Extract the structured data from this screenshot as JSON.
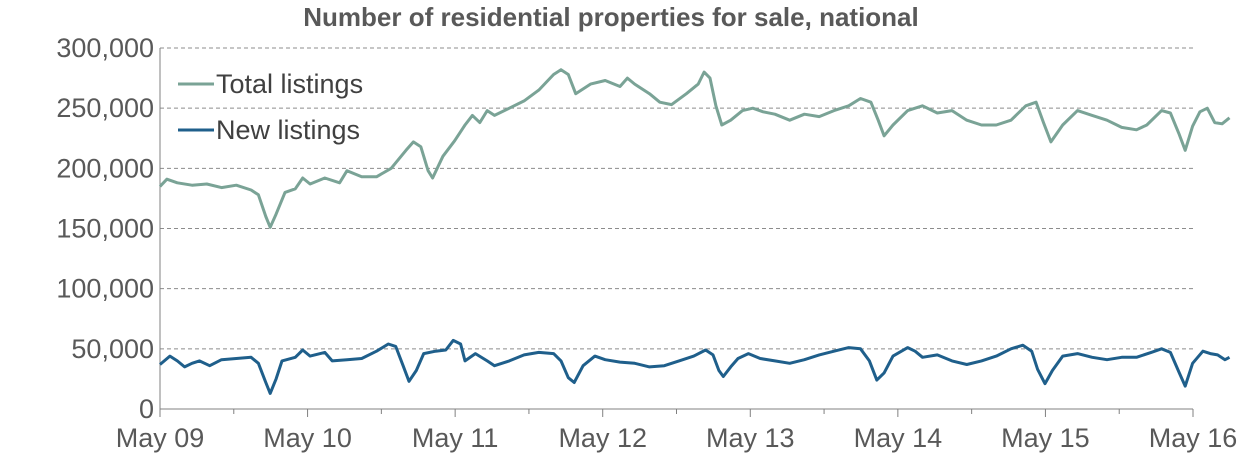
{
  "chart_data": {
    "type": "line",
    "title": "Number of residential properties for sale, national",
    "xlabel": "",
    "ylabel": "",
    "x_ticks": [
      "May 09",
      "May 10",
      "May 11",
      "May 12",
      "May 13",
      "May 14",
      "May 15",
      "May 16"
    ],
    "xlim": [
      2009.333,
      2016.333
    ],
    "ylim": [
      0,
      300000
    ],
    "y_ticks": [
      0,
      50000,
      100000,
      150000,
      200000,
      250000,
      300000
    ],
    "y_tick_labels": [
      "0",
      "50,000",
      "100,000",
      "150,000",
      "200,000",
      "250,000",
      "300,000"
    ],
    "grid": "horizontal dashed",
    "legend_position": "top-left",
    "series": [
      {
        "name": "Total listings",
        "color": "#7aa396",
        "points": [
          [
            2009.333,
            185000
          ],
          [
            2009.38,
            191000
          ],
          [
            2009.45,
            188000
          ],
          [
            2009.55,
            186000
          ],
          [
            2009.65,
            187000
          ],
          [
            2009.75,
            184000
          ],
          [
            2009.85,
            186000
          ],
          [
            2009.95,
            182000
          ],
          [
            2010.0,
            178000
          ],
          [
            2010.05,
            160000
          ],
          [
            2010.08,
            151000
          ],
          [
            2010.12,
            162000
          ],
          [
            2010.18,
            180000
          ],
          [
            2010.25,
            183000
          ],
          [
            2010.3,
            192000
          ],
          [
            2010.35,
            187000
          ],
          [
            2010.45,
            192000
          ],
          [
            2010.55,
            188000
          ],
          [
            2010.6,
            198000
          ],
          [
            2010.7,
            193000
          ],
          [
            2010.8,
            193000
          ],
          [
            2010.9,
            200000
          ],
          [
            2011.0,
            215000
          ],
          [
            2011.05,
            222000
          ],
          [
            2011.1,
            218000
          ],
          [
            2011.15,
            198000
          ],
          [
            2011.18,
            192000
          ],
          [
            2011.25,
            210000
          ],
          [
            2011.33,
            223000
          ],
          [
            2011.4,
            236000
          ],
          [
            2011.45,
            244000
          ],
          [
            2011.5,
            238000
          ],
          [
            2011.55,
            248000
          ],
          [
            2011.6,
            244000
          ],
          [
            2011.7,
            250000
          ],
          [
            2011.8,
            256000
          ],
          [
            2011.9,
            265000
          ],
          [
            2012.0,
            278000
          ],
          [
            2012.05,
            282000
          ],
          [
            2012.1,
            278000
          ],
          [
            2012.15,
            262000
          ],
          [
            2012.25,
            270000
          ],
          [
            2012.35,
            273000
          ],
          [
            2012.45,
            268000
          ],
          [
            2012.5,
            275000
          ],
          [
            2012.55,
            270000
          ],
          [
            2012.65,
            262000
          ],
          [
            2012.72,
            255000
          ],
          [
            2012.8,
            253000
          ],
          [
            2012.9,
            262000
          ],
          [
            2012.98,
            270000
          ],
          [
            2013.02,
            280000
          ],
          [
            2013.06,
            275000
          ],
          [
            2013.1,
            252000
          ],
          [
            2013.14,
            236000
          ],
          [
            2013.2,
            240000
          ],
          [
            2013.28,
            248000
          ],
          [
            2013.35,
            250000
          ],
          [
            2013.42,
            247000
          ],
          [
            2013.5,
            245000
          ],
          [
            2013.6,
            240000
          ],
          [
            2013.7,
            245000
          ],
          [
            2013.8,
            243000
          ],
          [
            2013.9,
            248000
          ],
          [
            2014.0,
            252000
          ],
          [
            2014.08,
            258000
          ],
          [
            2014.15,
            255000
          ],
          [
            2014.2,
            240000
          ],
          [
            2014.24,
            227000
          ],
          [
            2014.3,
            236000
          ],
          [
            2014.4,
            248000
          ],
          [
            2014.5,
            252000
          ],
          [
            2014.6,
            246000
          ],
          [
            2014.7,
            248000
          ],
          [
            2014.8,
            240000
          ],
          [
            2014.9,
            236000
          ],
          [
            2015.0,
            236000
          ],
          [
            2015.1,
            240000
          ],
          [
            2015.2,
            252000
          ],
          [
            2015.27,
            255000
          ],
          [
            2015.32,
            238000
          ],
          [
            2015.37,
            222000
          ],
          [
            2015.45,
            236000
          ],
          [
            2015.55,
            248000
          ],
          [
            2015.65,
            244000
          ],
          [
            2015.75,
            240000
          ],
          [
            2015.85,
            234000
          ],
          [
            2015.95,
            232000
          ],
          [
            2016.02,
            236000
          ],
          [
            2016.12,
            248000
          ],
          [
            2016.18,
            246000
          ],
          [
            2016.24,
            228000
          ],
          [
            2016.28,
            215000
          ],
          [
            2016.33,
            235000
          ],
          [
            2016.38,
            247000
          ],
          [
            2016.43,
            250000
          ],
          [
            2016.48,
            238000
          ],
          [
            2016.53,
            237000
          ],
          [
            2016.58,
            242000
          ]
        ]
      },
      {
        "name": "New listings",
        "color": "#1f5f8b",
        "points": [
          [
            2009.333,
            37000
          ],
          [
            2009.4,
            44000
          ],
          [
            2009.45,
            40000
          ],
          [
            2009.5,
            35000
          ],
          [
            2009.55,
            38000
          ],
          [
            2009.6,
            40000
          ],
          [
            2009.67,
            36000
          ],
          [
            2009.75,
            41000
          ],
          [
            2009.85,
            42000
          ],
          [
            2009.95,
            43000
          ],
          [
            2010.0,
            38000
          ],
          [
            2010.05,
            22000
          ],
          [
            2010.08,
            13000
          ],
          [
            2010.12,
            25000
          ],
          [
            2010.16,
            40000
          ],
          [
            2010.25,
            43000
          ],
          [
            2010.3,
            49000
          ],
          [
            2010.35,
            44000
          ],
          [
            2010.45,
            47000
          ],
          [
            2010.5,
            40000
          ],
          [
            2010.6,
            41000
          ],
          [
            2010.7,
            42000
          ],
          [
            2010.8,
            48000
          ],
          [
            2010.88,
            54000
          ],
          [
            2010.93,
            52000
          ],
          [
            2010.98,
            36000
          ],
          [
            2011.02,
            23000
          ],
          [
            2011.07,
            32000
          ],
          [
            2011.12,
            46000
          ],
          [
            2011.2,
            48000
          ],
          [
            2011.27,
            49000
          ],
          [
            2011.32,
            57000
          ],
          [
            2011.37,
            54000
          ],
          [
            2011.4,
            40000
          ],
          [
            2011.47,
            46000
          ],
          [
            2011.55,
            40000
          ],
          [
            2011.6,
            36000
          ],
          [
            2011.7,
            40000
          ],
          [
            2011.8,
            45000
          ],
          [
            2011.9,
            47000
          ],
          [
            2012.0,
            46000
          ],
          [
            2012.05,
            40000
          ],
          [
            2012.1,
            26000
          ],
          [
            2012.14,
            22000
          ],
          [
            2012.2,
            36000
          ],
          [
            2012.28,
            44000
          ],
          [
            2012.35,
            41000
          ],
          [
            2012.45,
            39000
          ],
          [
            2012.55,
            38000
          ],
          [
            2012.65,
            35000
          ],
          [
            2012.75,
            36000
          ],
          [
            2012.85,
            40000
          ],
          [
            2012.95,
            44000
          ],
          [
            2013.03,
            49000
          ],
          [
            2013.08,
            45000
          ],
          [
            2013.12,
            32000
          ],
          [
            2013.15,
            27000
          ],
          [
            2013.2,
            35000
          ],
          [
            2013.25,
            42000
          ],
          [
            2013.32,
            46000
          ],
          [
            2013.4,
            42000
          ],
          [
            2013.5,
            40000
          ],
          [
            2013.6,
            38000
          ],
          [
            2013.7,
            41000
          ],
          [
            2013.8,
            45000
          ],
          [
            2013.9,
            48000
          ],
          [
            2014.0,
            51000
          ],
          [
            2014.08,
            50000
          ],
          [
            2014.14,
            40000
          ],
          [
            2014.19,
            24000
          ],
          [
            2014.24,
            30000
          ],
          [
            2014.3,
            44000
          ],
          [
            2014.4,
            51000
          ],
          [
            2014.45,
            48000
          ],
          [
            2014.5,
            43000
          ],
          [
            2014.6,
            45000
          ],
          [
            2014.7,
            40000
          ],
          [
            2014.8,
            37000
          ],
          [
            2014.9,
            40000
          ],
          [
            2015.0,
            44000
          ],
          [
            2015.1,
            50000
          ],
          [
            2015.18,
            53000
          ],
          [
            2015.24,
            48000
          ],
          [
            2015.28,
            33000
          ],
          [
            2015.33,
            21000
          ],
          [
            2015.38,
            32000
          ],
          [
            2015.45,
            44000
          ],
          [
            2015.55,
            46000
          ],
          [
            2015.65,
            43000
          ],
          [
            2015.75,
            41000
          ],
          [
            2015.85,
            43000
          ],
          [
            2015.95,
            43000
          ],
          [
            2016.05,
            47000
          ],
          [
            2016.12,
            50000
          ],
          [
            2016.18,
            47000
          ],
          [
            2016.24,
            30000
          ],
          [
            2016.28,
            19000
          ],
          [
            2016.33,
            38000
          ],
          [
            2016.4,
            48000
          ],
          [
            2016.45,
            46000
          ],
          [
            2016.5,
            45000
          ],
          [
            2016.55,
            41000
          ],
          [
            2016.58,
            43000
          ]
        ]
      }
    ]
  }
}
